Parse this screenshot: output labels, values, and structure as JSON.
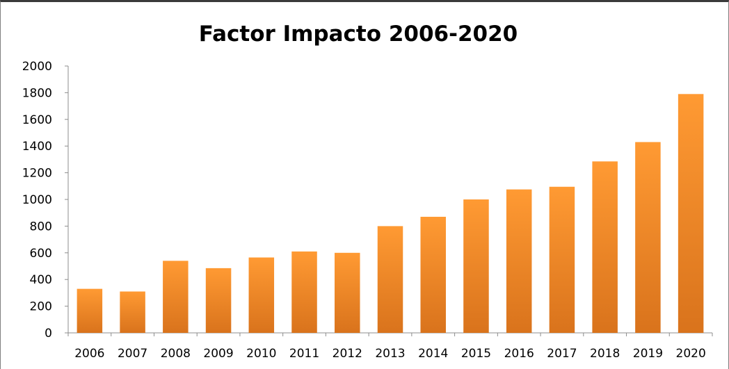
{
  "chart_data": {
    "type": "bar",
    "title": "Factor Impacto 2006-2020",
    "xlabel": "",
    "ylabel": "",
    "categories": [
      "2006",
      "2007",
      "2008",
      "2009",
      "2010",
      "2011",
      "2012",
      "2013",
      "2014",
      "2015",
      "2016",
      "2017",
      "2018",
      "2019",
      "2020"
    ],
    "values": [
      330,
      310,
      540,
      485,
      565,
      610,
      600,
      800,
      870,
      1000,
      1075,
      1095,
      1285,
      1430,
      1790
    ],
    "ylim": [
      0,
      2000
    ],
    "yticks": [
      "0",
      "200",
      "400",
      "600",
      "800",
      "1000",
      "1200",
      "1400",
      "1600",
      "1800",
      "2000"
    ],
    "grid": false,
    "legend": "none",
    "bar_color_top": "#ff9a33",
    "bar_color_bottom": "#d9731c"
  }
}
